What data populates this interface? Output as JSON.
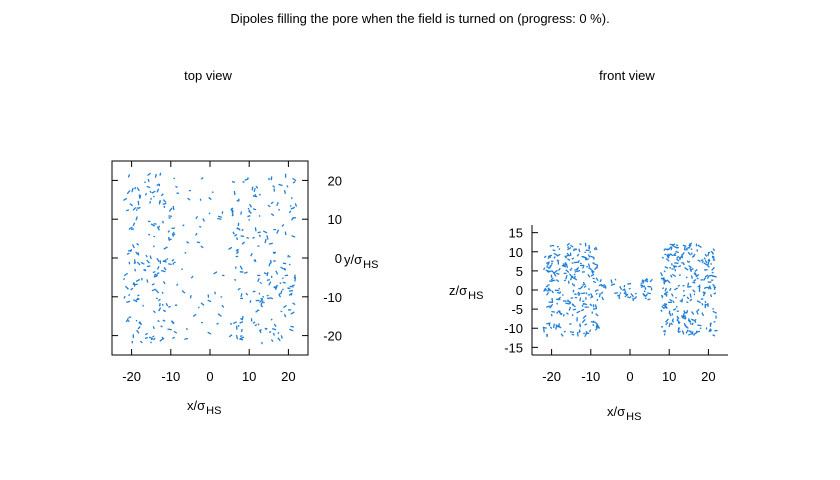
{
  "title": "Dipoles filling the pore when the field is turned on (progress:  0 %).",
  "colors": {
    "dipole": "#1f7fd6"
  },
  "chart_data": [
    {
      "type": "scatter",
      "title": "top view",
      "xlabel": {
        "main": "x/σ",
        "sub": "HS"
      },
      "ylabel": {
        "main": "y/σ",
        "sub": "HS"
      },
      "xlim": [
        -25,
        25
      ],
      "ylim": [
        -25,
        25
      ],
      "xticks": [
        -20,
        -10,
        0,
        10,
        20
      ],
      "yticks": [
        -20,
        -10,
        0,
        10,
        20
      ],
      "y_axis_side": "right",
      "grid": false,
      "regions": [
        {
          "x": [
            -22,
            -9
          ],
          "y": [
            -22,
            22
          ],
          "density": 160
        },
        {
          "x": [
            -9,
            4
          ],
          "y": [
            -22,
            22
          ],
          "density": 45
        },
        {
          "x": [
            5,
            22
          ],
          "y": [
            -22,
            22
          ],
          "density": 190
        }
      ]
    },
    {
      "type": "scatter",
      "title": "front view",
      "xlabel": {
        "main": "x/σ",
        "sub": "HS"
      },
      "ylabel": {
        "main": "z/σ",
        "sub": "HS"
      },
      "xlim": [
        -25,
        25
      ],
      "ylim": [
        -17,
        17
      ],
      "xticks": [
        -20,
        -10,
        0,
        10,
        20
      ],
      "yticks": [
        -15,
        -10,
        -5,
        0,
        5,
        10,
        15
      ],
      "y_axis_side": "left",
      "grid": false,
      "regions": [
        {
          "x": [
            -22,
            -8
          ],
          "y": [
            -12,
            12
          ],
          "density": 230
        },
        {
          "x": [
            -8,
            6
          ],
          "y": [
            -3,
            3
          ],
          "density": 50
        },
        {
          "x": [
            8,
            22
          ],
          "y": [
            -12,
            12
          ],
          "density": 240
        }
      ]
    }
  ]
}
